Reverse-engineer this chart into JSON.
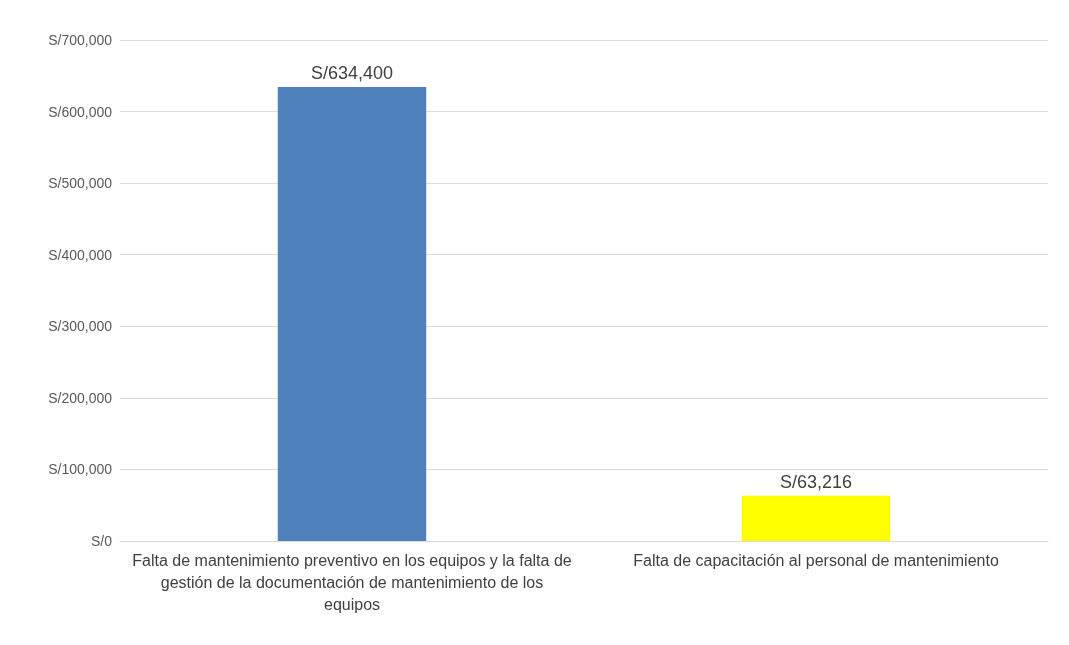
{
  "chart_data": {
    "type": "bar",
    "categories": [
      "Falta de mantenimiento preventivo en los equipos y la falta de gestión de la documentación de mantenimiento de los equipos",
      "Falta de capacitación al personal de mantenimiento"
    ],
    "values": [
      634400,
      63216
    ],
    "colors": [
      "#4f81bd",
      "#ffff00"
    ],
    "value_labels": [
      "S/634,400",
      "S/63,216"
    ],
    "ylim": [
      0,
      700000
    ],
    "yticks": [
      {
        "value": 0,
        "label": "S/0"
      },
      {
        "value": 100000,
        "label": "S/100,000"
      },
      {
        "value": 200000,
        "label": "S/200,000"
      },
      {
        "value": 300000,
        "label": "S/300,000"
      },
      {
        "value": 400000,
        "label": "S/400,000"
      },
      {
        "value": 500000,
        "label": "S/500,000"
      },
      {
        "value": 600000,
        "label": "S/600,000"
      },
      {
        "value": 700000,
        "label": "S/700,000"
      }
    ],
    "grid": "y"
  }
}
